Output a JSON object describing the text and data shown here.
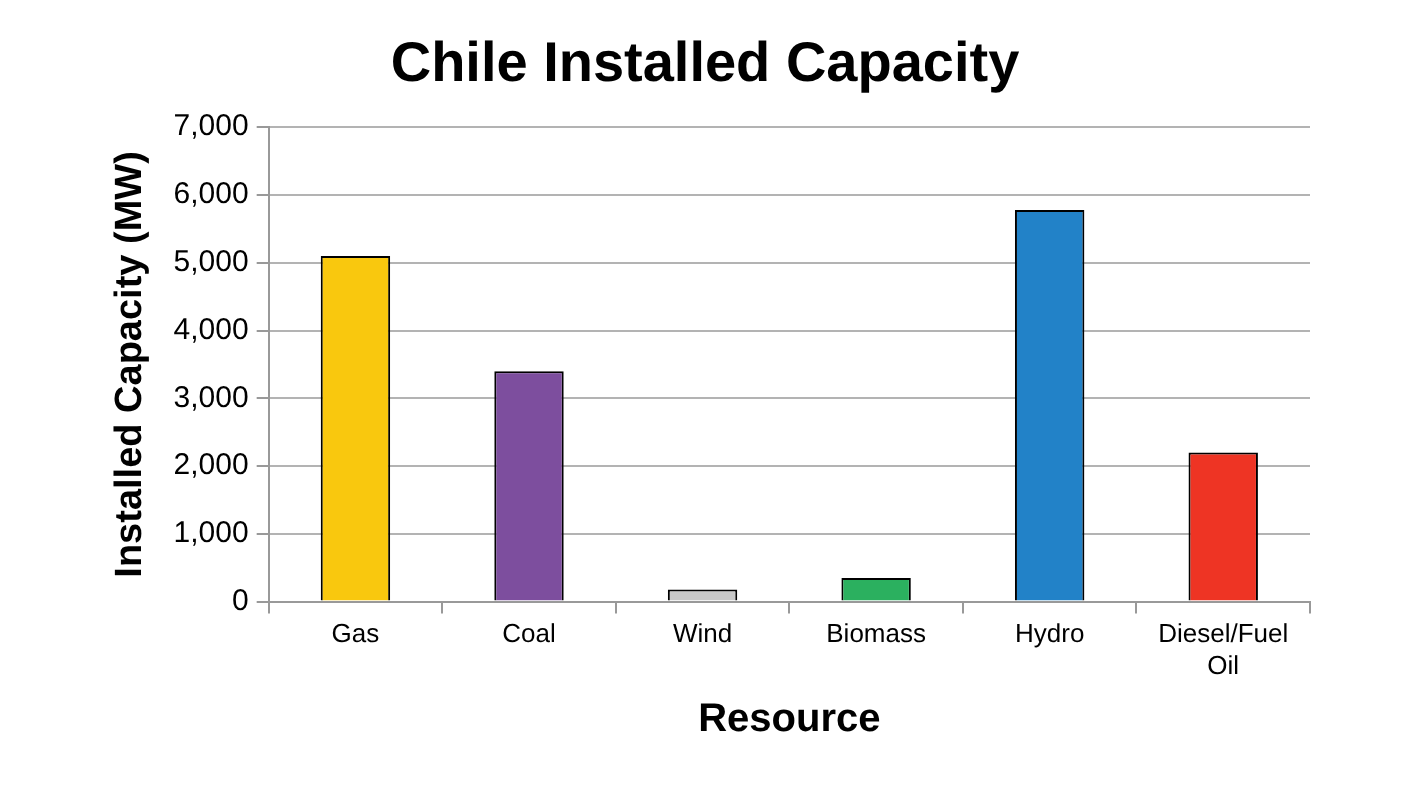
{
  "chart_data": {
    "type": "bar",
    "title": "Chile Installed Capacity",
    "xlabel": "Resource",
    "ylabel": "Installed Capacity (MW)",
    "categories": [
      "Gas",
      "Coal",
      "Wind",
      "Biomass",
      "Hydro",
      "Diesel/Fuel Oil"
    ],
    "values": [
      5100,
      3400,
      180,
      350,
      5780,
      2200
    ],
    "colors": [
      "#f9c80e",
      "#7d4e9e",
      "#c8c8c8",
      "#2bb05f",
      "#2282c8",
      "#ee3424"
    ],
    "ylim": [
      0,
      7000
    ],
    "yticks": [
      0,
      {
        "value": 1000,
        "label": "1,000"
      },
      {
        "value": 2000,
        "label": "2,000"
      },
      {
        "value": 3000,
        "label": "3,000"
      },
      {
        "value": 4000,
        "label": "4,000"
      },
      {
        "value": 5000,
        "label": "5,000"
      },
      {
        "value": 6000,
        "label": "6,000"
      },
      {
        "value": 7000,
        "label": "7,000"
      }
    ],
    "grid": "y",
    "legend": false
  }
}
